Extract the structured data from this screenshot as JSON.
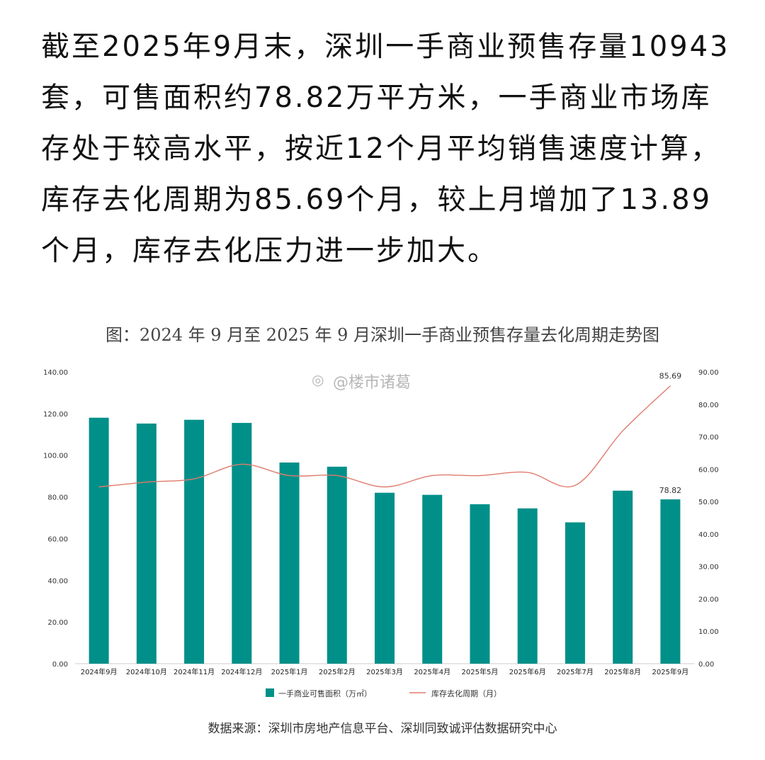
{
  "paragraph": "截至2025年9月末，深圳一手商业预售存量10943套，可售面积约78.82万平方米，一手商业市场库存处于较高水平，按近12个月平均销售速度计算，库存去化周期为85.69个月，较上月增加了13.89个月，库存去化压力进一步加大。",
  "watermark": "@楼市诸葛",
  "source": "数据来源：深圳市房地产信息平台、深圳同致诚评估数据研究中心",
  "colors": {
    "bar": "#009089",
    "line": "#e07b6d"
  },
  "chart_data": {
    "type": "bar",
    "title": "图：2024 年 9 月至 2025 年 9 月深圳一手商业预售存量去化周期走势图",
    "categories": [
      "2024年9月",
      "2024年10月",
      "2024年11月",
      "2024年12月",
      "2025年1月",
      "2025年2月",
      "2025年3月",
      "2025年4月",
      "2025年5月",
      "2025年6月",
      "2025年7月",
      "2025年8月",
      "2025年9月"
    ],
    "series": [
      {
        "name": "一手商业可售面积（万㎡）",
        "type": "bar",
        "axis": "left",
        "values": [
          118.0,
          115.2,
          117.0,
          115.5,
          96.5,
          94.5,
          82.0,
          81.0,
          76.5,
          74.5,
          67.8,
          83.0,
          78.82
        ],
        "labels": [
          "",
          "",
          "",
          "",
          "",
          "",
          "",
          "",
          "",
          "",
          "",
          "",
          "78.82"
        ]
      },
      {
        "name": "库存去化周期（月）",
        "type": "line",
        "axis": "right",
        "values": [
          54.5,
          56.0,
          57.0,
          61.5,
          58.0,
          58.0,
          54.5,
          58.0,
          58.0,
          59.0,
          55.0,
          71.8,
          85.69
        ],
        "labels": [
          "",
          "",
          "",
          "",
          "",
          "",
          "",
          "",
          "",
          "",
          "",
          "",
          "85.69"
        ]
      }
    ],
    "y_left": {
      "min": 0,
      "max": 140,
      "ticks": [
        "0.00",
        "20.00",
        "40.00",
        "60.00",
        "80.00",
        "100.00",
        "120.00",
        "140.00"
      ]
    },
    "y_right": {
      "min": 0,
      "max": 90,
      "ticks": [
        "0.00",
        "10.00",
        "20.00",
        "30.00",
        "40.00",
        "50.00",
        "60.00",
        "70.00",
        "80.00",
        "90.00"
      ]
    },
    "legend_position": "bottom",
    "grid": false
  }
}
